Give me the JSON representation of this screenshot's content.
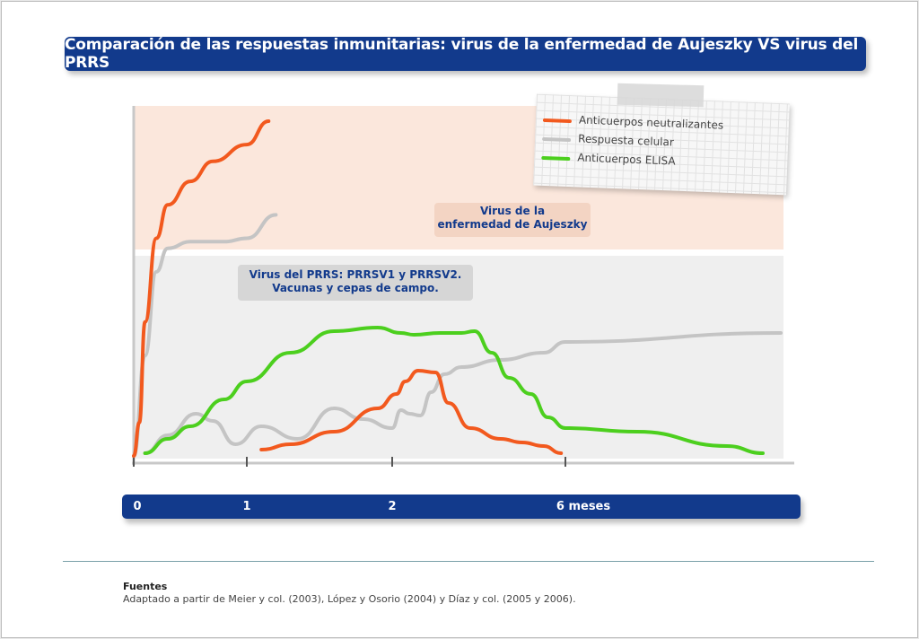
{
  "title": "Comparación de las respuestas inmunitarias: virus de la enfermedad de Aujeszky VS virus del PRRS",
  "regions": {
    "aujeszky": [
      "Virus de la",
      "enfermedad de Aujeszky"
    ],
    "prrs": [
      "Virus del PRRS: PRRSV1 y PRRSV2.",
      "Vacunas y cepas de campo."
    ]
  },
  "legend": [
    {
      "label": "Anticuerpos neutralizantes",
      "color": "#f2591e"
    },
    {
      "label": "Respuesta celular",
      "color": "#c4c4c4"
    },
    {
      "label": "Anticuerpos ELISA",
      "color": "#4ccf1e"
    }
  ],
  "axis": {
    "labels": [
      "0",
      "1",
      "2",
      "6 meses"
    ]
  },
  "colors": {
    "title_bg": "#123a8c",
    "aujeszky_bg": "#fbe7dc",
    "prrs_bg": "#efefef",
    "neutralizing": "#f2591e",
    "cellular": "#c4c4c4",
    "elisa": "#4ccf1e"
  },
  "chart_data": {
    "type": "line",
    "x_ticks": [
      "0",
      "1",
      "2",
      "6 meses"
    ],
    "y_scale": "relative 0-100 (no numeric axis shown)",
    "panels": [
      {
        "panel": "Virus de la enfermedad de Aujeszky",
        "series": [
          {
            "name": "Anticuerpos neutralizantes",
            "points": [
              [
                0.0,
                0
              ],
              [
                0.05,
                10
              ],
              [
                0.1,
                40
              ],
              [
                0.2,
                65
              ],
              [
                0.3,
                75
              ],
              [
                0.5,
                82
              ],
              [
                0.7,
                88
              ],
              [
                1.0,
                93
              ],
              [
                1.15,
                100
              ]
            ]
          },
          {
            "name": "Respuesta celular",
            "points": [
              [
                0.0,
                0
              ],
              [
                0.1,
                30
              ],
              [
                0.2,
                55
              ],
              [
                0.3,
                62
              ],
              [
                0.5,
                64
              ],
              [
                0.8,
                64
              ],
              [
                1.0,
                65
              ],
              [
                1.2,
                72
              ]
            ]
          }
        ]
      },
      {
        "panel": "Virus del PRRS: PRRSV1 y PRRSV2. Vacunas y cepas de campo.",
        "series": [
          {
            "name": "Anticuerpos neutralizantes",
            "points": [
              [
                1.1,
                2
              ],
              [
                1.3,
                5
              ],
              [
                1.6,
                12
              ],
              [
                1.9,
                25
              ],
              [
                2.1,
                33
              ],
              [
                2.3,
                40
              ],
              [
                2.6,
                46
              ],
              [
                3.0,
                45
              ],
              [
                3.3,
                28
              ],
              [
                3.8,
                14
              ],
              [
                4.5,
                8
              ],
              [
                5.0,
                6
              ],
              [
                5.5,
                4
              ],
              [
                5.9,
                0
              ]
            ]
          },
          {
            "name": "Respuesta celular",
            "points": [
              [
                0.1,
                0
              ],
              [
                0.3,
                10
              ],
              [
                0.55,
                22
              ],
              [
                0.7,
                18
              ],
              [
                0.9,
                5
              ],
              [
                1.1,
                15
              ],
              [
                1.35,
                8
              ],
              [
                1.6,
                25
              ],
              [
                1.8,
                19
              ],
              [
                2.0,
                14
              ],
              [
                2.2,
                24
              ],
              [
                2.4,
                22
              ],
              [
                2.65,
                21
              ],
              [
                2.9,
                34
              ],
              [
                3.2,
                44
              ],
              [
                3.6,
                48
              ],
              [
                4.5,
                52
              ],
              [
                5.5,
                56
              ],
              [
                6.0,
                62
              ],
              [
                7.2,
                67
              ]
            ]
          },
          {
            "name": "Anticuerpos ELISA",
            "points": [
              [
                0.1,
                0
              ],
              [
                0.3,
                8
              ],
              [
                0.5,
                15
              ],
              [
                0.8,
                30
              ],
              [
                1.0,
                40
              ],
              [
                1.3,
                56
              ],
              [
                1.6,
                68
              ],
              [
                1.9,
                70
              ],
              [
                2.2,
                67
              ],
              [
                2.5,
                66
              ],
              [
                3.1,
                67
              ],
              [
                3.6,
                67
              ],
              [
                3.9,
                68
              ],
              [
                4.3,
                56
              ],
              [
                4.7,
                42
              ],
              [
                5.2,
                33
              ],
              [
                5.6,
                20
              ],
              [
                6.0,
                14
              ],
              [
                6.4,
                12
              ],
              [
                6.9,
                4
              ],
              [
                7.1,
                0
              ]
            ]
          }
        ]
      }
    ]
  },
  "sources": {
    "title": "Fuentes",
    "text": "Adaptado a partir de Meier y col. (2003), López y Osorio (2004) y Díaz y col. (2005 y 2006)."
  }
}
